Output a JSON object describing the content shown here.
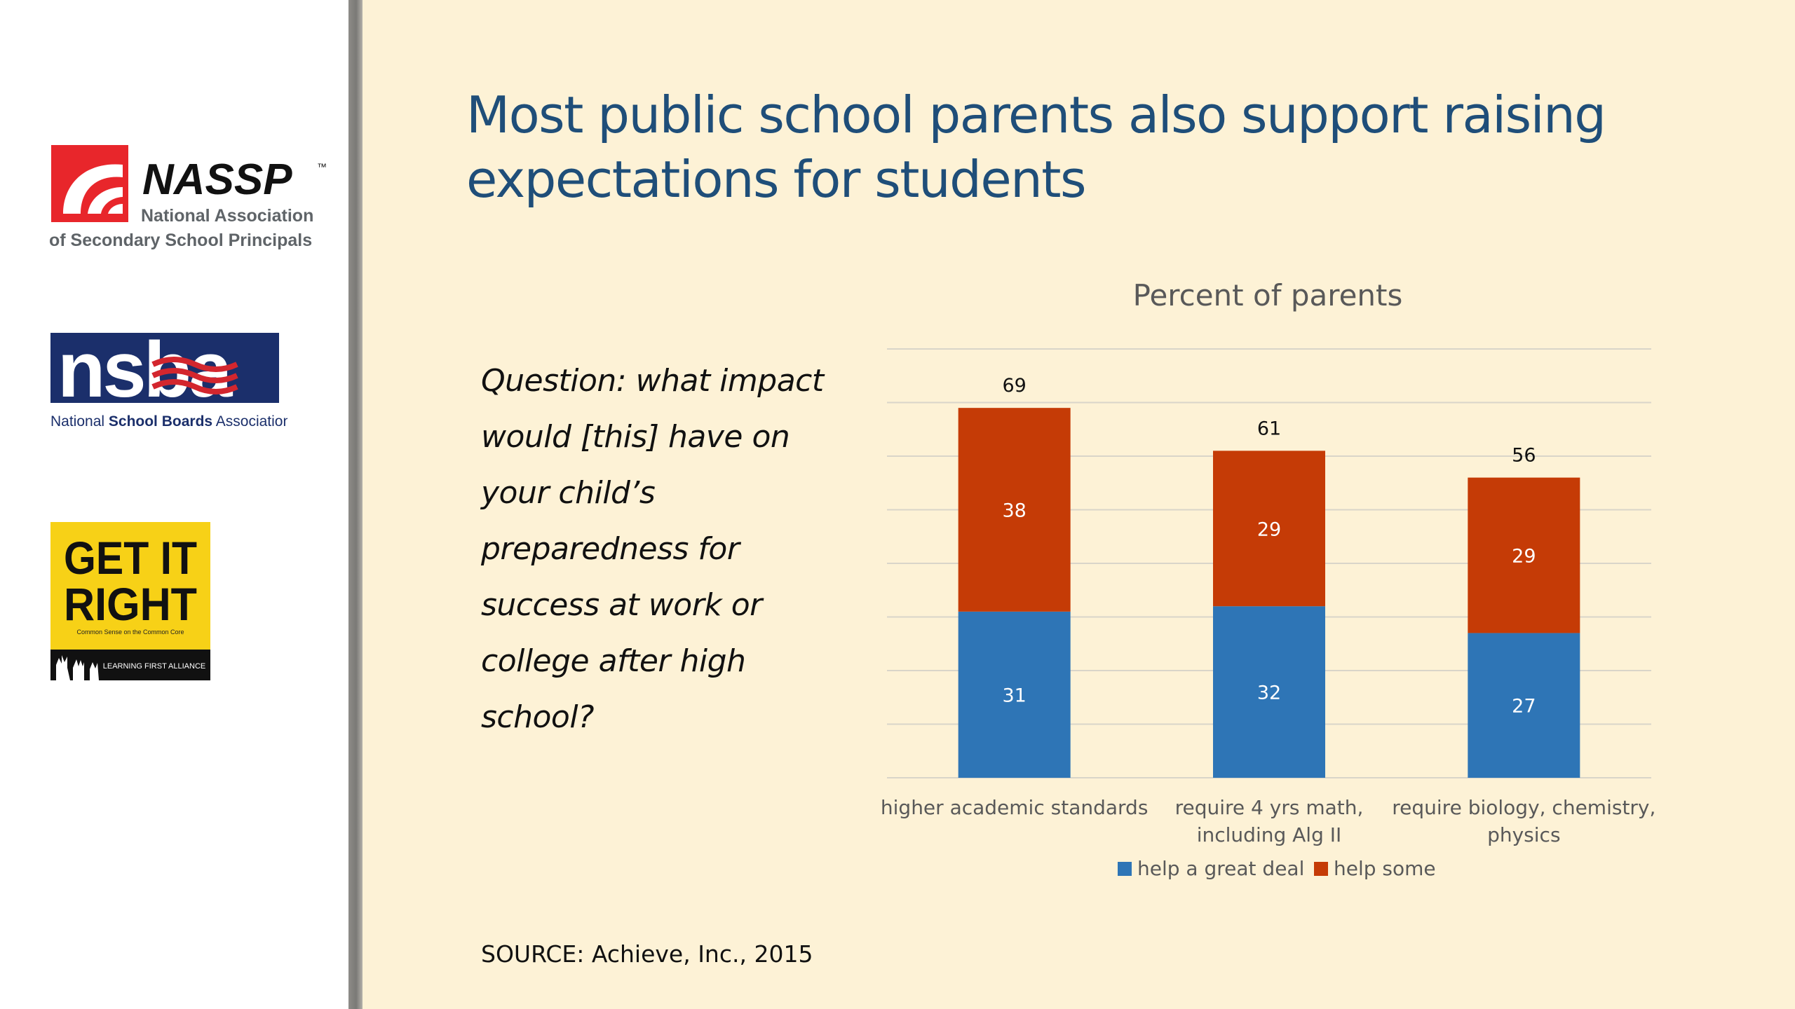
{
  "slide": {
    "title": "Most public school parents also support raising expectations for students",
    "question": "Question: what impact would [this] have on your child’s preparedness for success at work or college after high school?",
    "source": "SOURCE: Achieve, Inc., 2015"
  },
  "logos": {
    "nassp": {
      "name": "NASSP",
      "tm": "™",
      "line1": "National Association",
      "line2": "of Secondary School Principals"
    },
    "nsba": {
      "name": "nsba",
      "tagline_pre": "National ",
      "tagline_bold": "School Boards",
      "tagline_post": " Association"
    },
    "getitright": {
      "line1": "GET IT",
      "line2": "RIGHT",
      "sub": "Common Sense on the Common Core",
      "band": "LEARNING FIRST ALLIANCE"
    }
  },
  "colors": {
    "background": "#fdf2d6",
    "title": "#1f4e79",
    "help_a_great_deal": "#2e75b6",
    "help_some": "#c53b06",
    "gridline": "#d9d5c9"
  },
  "chart_data": {
    "type": "bar",
    "stacked": true,
    "title": "Percent of parents",
    "categories": [
      "higher academic standards",
      "require 4 yrs math, including Alg II",
      "require biology, chemistry, physics"
    ],
    "category_lines": [
      [
        "higher academic standards"
      ],
      [
        "require 4 yrs math,",
        "including Alg II"
      ],
      [
        "require biology, chemistry,",
        "physics"
      ]
    ],
    "series": [
      {
        "name": "help a great deal",
        "values": [
          31,
          32,
          27
        ],
        "color": "#2e75b6"
      },
      {
        "name": "help some",
        "values": [
          38,
          29,
          29
        ],
        "color": "#c53b06"
      }
    ],
    "totals": [
      69,
      61,
      56
    ],
    "ylim": [
      0,
      80
    ],
    "grid": true,
    "legend_position": "bottom",
    "xlabel": "",
    "ylabel": ""
  }
}
